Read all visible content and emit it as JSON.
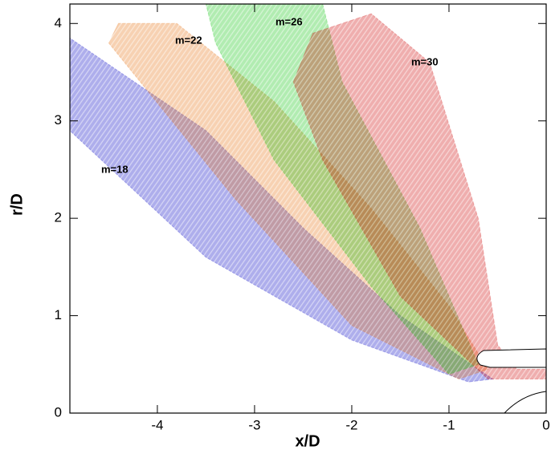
{
  "chart_data": {
    "type": "beam",
    "xlabel": "x/D",
    "ylabel": "r/D",
    "xlim": [
      -4.9,
      0
    ],
    "ylim": [
      0,
      4.2
    ],
    "xticks": [
      -4,
      -3,
      -2,
      -1,
      0
    ],
    "yticks": [
      0,
      1,
      2,
      3,
      4
    ],
    "series": [
      {
        "name": "m=18",
        "color": "#1010c8",
        "x": [
          -4.9,
          -3.5,
          -2.5,
          -1.5,
          -0.7,
          -0.55,
          -0.8,
          -2,
          -3.5,
          -4.9
        ],
        "y": [
          3.85,
          2.9,
          1.9,
          1.0,
          0.45,
          0.35,
          0.32,
          0.75,
          1.6,
          2.9
        ]
      },
      {
        "name": "m=22",
        "color": "#e8781e",
        "x": [
          -4.4,
          -3.8,
          -2.8,
          -1.8,
          -1.0,
          -0.6,
          -0.9,
          -2,
          -3.2,
          -4.5
        ],
        "y": [
          4.0,
          4.0,
          3.2,
          2.1,
          1.1,
          0.45,
          0.35,
          0.9,
          2.2,
          3.8
        ]
      },
      {
        "name": "m=26",
        "color": "#18c818",
        "x": [
          -3.5,
          -2.3,
          -2.1,
          -1.3,
          -0.7,
          -1.0,
          -1.8,
          -2.8,
          -3.4
        ],
        "y": [
          4.2,
          4.2,
          3.4,
          1.9,
          0.5,
          0.4,
          1.3,
          2.6,
          3.8
        ]
      },
      {
        "name": "m=30",
        "color": "#d01010",
        "x": [
          -2.4,
          -1.8,
          -1.2,
          -0.7,
          -0.5,
          -0.3,
          0,
          0,
          -0.6,
          -1.5,
          -2.3,
          -2.6
        ],
        "y": [
          3.9,
          4.1,
          3.6,
          2.0,
          0.7,
          0.45,
          0.45,
          0.35,
          0.35,
          1.2,
          2.6,
          3.4
        ]
      }
    ]
  }
}
